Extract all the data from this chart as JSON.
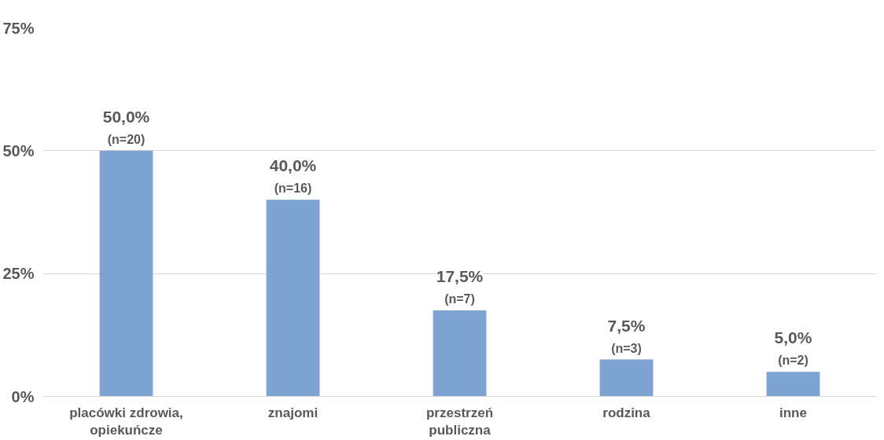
{
  "chart_data": {
    "type": "bar",
    "categories": [
      "placówki zdrowia,\nopiekuńcze",
      "znajomi",
      "przestrzeń\npubliczna",
      "rodzina",
      "inne"
    ],
    "values": [
      50.0,
      40.0,
      17.5,
      7.5,
      5.0
    ],
    "color": "#7fa4d4",
    "value_labels": [
      "50,0%\n(n=20)",
      "40,0%\n(n=16)",
      "17,5%\n(n=7)",
      "7,5%\n(n=3)",
      "5,0%\n(n=2)"
    ],
    "ylim": [
      0,
      75
    ],
    "yticks": [
      {
        "value": 0,
        "label": "0%"
      },
      {
        "value": 25,
        "label": "25%"
      },
      {
        "value": 50,
        "label": "50%"
      },
      {
        "value": 75,
        "label": "75%"
      }
    ],
    "grid": "y"
  }
}
